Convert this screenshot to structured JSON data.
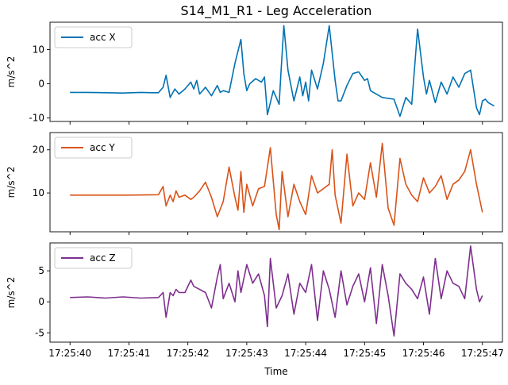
{
  "chart_data": {
    "type": "line",
    "title": "S14_M1_R1 - Leg Acceleration",
    "xlabel": "Time",
    "x_ticks": [
      "17:25:40",
      "17:25:41",
      "17:25:42",
      "17:25:43",
      "17:25:44",
      "17:25:45",
      "17:25:46",
      "17:25:47"
    ],
    "x_range_seconds_after_17_25_40": [
      -0.34,
      7.34
    ],
    "grid": false,
    "legend_position": "top-left",
    "panels": [
      {
        "name": "acc X",
        "color": "#0072b2",
        "ylabel": "m/s^2",
        "ylim": [
          -11,
          18
        ],
        "yticks": [
          -10,
          0,
          10
        ],
        "x": [
          0.0,
          0.3,
          0.6,
          0.9,
          1.2,
          1.4,
          1.5,
          1.58,
          1.63,
          1.7,
          1.78,
          1.85,
          1.95,
          2.05,
          2.1,
          2.15,
          2.2,
          2.3,
          2.4,
          2.5,
          2.55,
          2.6,
          2.7,
          2.8,
          2.9,
          2.95,
          3.0,
          3.05,
          3.15,
          3.25,
          3.3,
          3.35,
          3.45,
          3.55,
          3.58,
          3.63,
          3.7,
          3.8,
          3.9,
          3.95,
          4.0,
          4.05,
          4.1,
          4.2,
          4.3,
          4.4,
          4.5,
          4.55,
          4.6,
          4.7,
          4.8,
          4.9,
          5.0,
          5.05,
          5.1,
          5.15,
          5.3,
          5.5,
          5.6,
          5.7,
          5.8,
          5.85,
          5.9,
          6.0,
          6.05,
          6.1,
          6.2,
          6.3,
          6.4,
          6.5,
          6.6,
          6.7,
          6.8,
          6.9,
          6.95,
          7.0,
          7.05,
          7.1,
          7.2
        ],
        "y": [
          -2.5,
          -2.5,
          -2.6,
          -2.7,
          -2.5,
          -2.6,
          -2.6,
          -1.0,
          2.5,
          -4.0,
          -1.5,
          -3.0,
          -1.5,
          0.5,
          -1.5,
          1.0,
          -3.0,
          -1.0,
          -3.5,
          -0.5,
          -2.5,
          -2.0,
          -2.5,
          6.0,
          13.0,
          3.0,
          -2.0,
          0.0,
          1.5,
          0.5,
          2.0,
          -9.0,
          -2.0,
          -6.0,
          3.0,
          17.0,
          4.0,
          -5.0,
          2.0,
          -3.5,
          0.5,
          -5.0,
          4.0,
          -1.5,
          6.0,
          17.0,
          1.0,
          -5.0,
          -5.0,
          -0.5,
          3.0,
          3.5,
          1.0,
          1.5,
          -2.0,
          -2.5,
          -4.0,
          -4.5,
          -9.5,
          -4.0,
          -6.0,
          5.0,
          16.0,
          2.0,
          -3.0,
          1.0,
          -5.5,
          0.5,
          -3.0,
          2.0,
          -1.0,
          3.0,
          4.0,
          -7.0,
          -9.0,
          -5.0,
          -4.5,
          -5.5,
          -6.5
        ]
      },
      {
        "name": "acc Y",
        "color": "#d95319",
        "ylabel": "m/s^2",
        "ylim": [
          1,
          24
        ],
        "yticks": [
          10,
          20
        ],
        "x": [
          0.0,
          0.5,
          1.0,
          1.5,
          1.58,
          1.63,
          1.7,
          1.75,
          1.8,
          1.85,
          1.95,
          2.05,
          2.1,
          2.2,
          2.3,
          2.4,
          2.5,
          2.6,
          2.7,
          2.8,
          2.85,
          2.9,
          2.95,
          3.0,
          3.1,
          3.2,
          3.3,
          3.4,
          3.5,
          3.55,
          3.6,
          3.7,
          3.8,
          3.9,
          4.0,
          4.1,
          4.2,
          4.3,
          4.4,
          4.45,
          4.5,
          4.6,
          4.7,
          4.8,
          4.9,
          5.0,
          5.1,
          5.2,
          5.3,
          5.4,
          5.5,
          5.6,
          5.7,
          5.8,
          5.9,
          6.0,
          6.1,
          6.2,
          6.3,
          6.4,
          6.5,
          6.6,
          6.7,
          6.8,
          6.9,
          7.0
        ],
        "y": [
          9.5,
          9.5,
          9.5,
          9.6,
          11.5,
          7.0,
          9.5,
          8.0,
          10.5,
          9.0,
          9.5,
          8.5,
          9.0,
          10.5,
          12.5,
          9.0,
          4.5,
          8.0,
          16.0,
          9.0,
          6.0,
          15.0,
          5.5,
          12.0,
          7.0,
          11.0,
          11.5,
          20.5,
          5.0,
          1.5,
          15.0,
          4.5,
          12.0,
          8.0,
          5.0,
          14.0,
          10.0,
          11.0,
          12.0,
          20.0,
          9.5,
          3.0,
          19.0,
          7.0,
          10.0,
          8.5,
          17.0,
          9.0,
          21.5,
          6.5,
          2.5,
          18.0,
          12.0,
          9.5,
          8.0,
          13.5,
          10.0,
          11.5,
          14.0,
          8.5,
          12.0,
          13.0,
          15.0,
          20.0,
          12.0,
          5.5
        ]
      },
      {
        "name": "acc Z",
        "color": "#7e2f8e",
        "ylabel": "m/s^2",
        "ylim": [
          -6.5,
          9.5
        ],
        "yticks": [
          -5,
          0,
          5
        ],
        "x": [
          0.0,
          0.3,
          0.6,
          0.9,
          1.2,
          1.5,
          1.58,
          1.63,
          1.7,
          1.75,
          1.8,
          1.85,
          1.95,
          2.05,
          2.1,
          2.2,
          2.3,
          2.4,
          2.5,
          2.55,
          2.6,
          2.7,
          2.8,
          2.85,
          2.9,
          3.0,
          3.1,
          3.2,
          3.3,
          3.35,
          3.4,
          3.5,
          3.6,
          3.7,
          3.8,
          3.9,
          4.0,
          4.1,
          4.2,
          4.3,
          4.4,
          4.5,
          4.6,
          4.7,
          4.8,
          4.9,
          5.0,
          5.1,
          5.2,
          5.3,
          5.4,
          5.5,
          5.6,
          5.7,
          5.8,
          5.9,
          6.0,
          6.1,
          6.2,
          6.3,
          6.4,
          6.5,
          6.6,
          6.7,
          6.8,
          6.9,
          6.95,
          7.0
        ],
        "y": [
          0.7,
          0.8,
          0.6,
          0.8,
          0.6,
          0.7,
          1.5,
          -2.5,
          1.5,
          1.0,
          2.0,
          1.5,
          1.5,
          3.5,
          2.5,
          2.0,
          1.5,
          -1.0,
          4.0,
          6.0,
          0.5,
          3.0,
          0.0,
          5.0,
          1.5,
          6.0,
          3.0,
          4.5,
          1.0,
          -4.0,
          7.0,
          -1.0,
          1.0,
          4.5,
          -2.0,
          3.0,
          1.5,
          6.0,
          -3.0,
          5.0,
          2.0,
          -2.5,
          5.0,
          -0.5,
          2.5,
          4.5,
          0.0,
          5.5,
          -3.5,
          6.0,
          1.0,
          -5.5,
          4.5,
          3.0,
          2.0,
          0.5,
          4.0,
          -2.0,
          7.0,
          0.5,
          5.0,
          3.0,
          2.5,
          0.5,
          9.0,
          2.0,
          0.0,
          1.0
        ]
      }
    ]
  }
}
